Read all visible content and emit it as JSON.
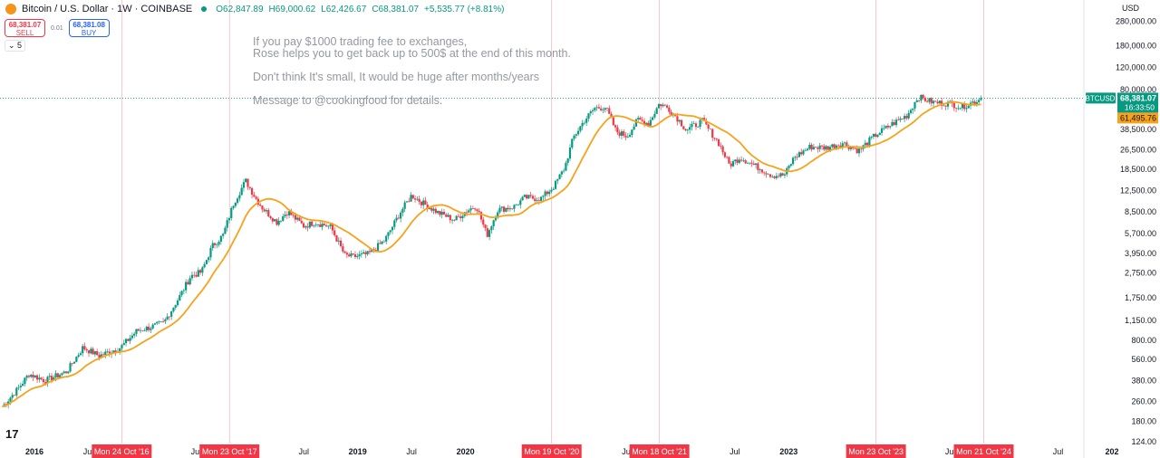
{
  "header": {
    "symbol": "Bitcoin / U.S. Dollar · 1W · COINBASE",
    "open": "O62,847.89",
    "high": "H69,000.62",
    "low": "L62,426.67",
    "close": "C68,381.07",
    "change": "+5,535.77 (+8.81%)"
  },
  "trade": {
    "sell_price": "68,381.07",
    "sell_label": "SELL",
    "spread": "0.01",
    "buy_price": "68,381.08",
    "buy_label": "BUY",
    "lots": "5"
  },
  "watermark": [
    "If you pay $1000 trading fee to exchanges,",
    "Rose helps you to get back up to 500$ at the end of this month.",
    "Don't think It's small, It would be huge after months/years",
    "Message to @cookingfood for details."
  ],
  "currency": "USD",
  "logo": "TV",
  "colors": {
    "up": "#089981",
    "down": "#f23645",
    "ma": "#f7a21b",
    "marker": "#f23645"
  },
  "chart_data": {
    "type": "candlestick",
    "title": "Bitcoin / U.S. Dollar · 1W · COINBASE",
    "yscale": "log",
    "ylim": [
      124,
      280000
    ],
    "y_ticks": [
      "280,000.00",
      "180,000.00",
      "120,000.00",
      "80,000.00",
      "38,500.00",
      "26,500.00",
      "18,500.00",
      "12,500.00",
      "8,500.00",
      "5,700.00",
      "3,950.00",
      "2,750.00",
      "1,750.00",
      "1,150.00",
      "800.00",
      "560.00",
      "380.00",
      "260.00",
      "180.00",
      "124.00"
    ],
    "y_tick_values": [
      280000,
      180000,
      120000,
      80000,
      38500,
      26500,
      18500,
      12500,
      8500,
      5700,
      3950,
      2750,
      1750,
      1150,
      800,
      560,
      380,
      260,
      180,
      124
    ],
    "x_ticks": [
      {
        "label": "2016",
        "t": 2016.0,
        "bold": true
      },
      {
        "label": "Jul",
        "t": 2016.5
      },
      {
        "label": "Jul",
        "t": 2017.5
      },
      {
        "label": "Jul",
        "t": 2018.5
      },
      {
        "label": "2019",
        "t": 2019.0,
        "bold": true
      },
      {
        "label": "Jul",
        "t": 2019.5
      },
      {
        "label": "2020",
        "t": 2020.0,
        "bold": true
      },
      {
        "label": "Jul",
        "t": 2021.5
      },
      {
        "label": "Jul",
        "t": 2022.5
      },
      {
        "label": "2023",
        "t": 2023.0,
        "bold": true
      },
      {
        "label": "Jul",
        "t": 2024.5
      },
      {
        "label": "Jul",
        "t": 2025.5
      },
      {
        "label": "202",
        "t": 2026.0,
        "bold": true
      }
    ],
    "markers": [
      {
        "label": "Mon 24 Oct '16",
        "t": 2016.81
      },
      {
        "label": "Mon 23 Oct '17",
        "t": 2017.81
      },
      {
        "label": "Mon 19 Oct '20",
        "t": 2020.8
      },
      {
        "label": "Mon 18 Oct '21",
        "t": 2021.8
      },
      {
        "label": "Mon 23 Oct '23",
        "t": 2023.81
      },
      {
        "label": "Mon 21 Oct '24",
        "t": 2024.81
      }
    ],
    "price_path": [
      [
        2015.7,
        235
      ],
      [
        2015.85,
        330
      ],
      [
        2015.95,
        430
      ],
      [
        2016.1,
        380
      ],
      [
        2016.3,
        450
      ],
      [
        2016.45,
        700
      ],
      [
        2016.6,
        600
      ],
      [
        2016.8,
        700
      ],
      [
        2016.95,
        950
      ],
      [
        2017.05,
        1000
      ],
      [
        2017.2,
        1100
      ],
      [
        2017.35,
        1800
      ],
      [
        2017.45,
        2600
      ],
      [
        2017.55,
        2800
      ],
      [
        2017.65,
        4500
      ],
      [
        2017.75,
        5500
      ],
      [
        2017.85,
        10000
      ],
      [
        2017.96,
        15000
      ],
      [
        2018.05,
        11000
      ],
      [
        2018.12,
        9000
      ],
      [
        2018.25,
        7000
      ],
      [
        2018.35,
        8500
      ],
      [
        2018.5,
        6500
      ],
      [
        2018.6,
        7000
      ],
      [
        2018.75,
        6400
      ],
      [
        2018.88,
        3800
      ],
      [
        2018.96,
        3700
      ],
      [
        2019.1,
        3900
      ],
      [
        2019.25,
        5000
      ],
      [
        2019.4,
        8500
      ],
      [
        2019.5,
        11500
      ],
      [
        2019.6,
        10000
      ],
      [
        2019.75,
        8300
      ],
      [
        2019.9,
        7300
      ],
      [
        2020.0,
        8500
      ],
      [
        2020.1,
        9500
      ],
      [
        2020.2,
        5500
      ],
      [
        2020.3,
        8800
      ],
      [
        2020.45,
        9300
      ],
      [
        2020.55,
        11000
      ],
      [
        2020.7,
        10800
      ],
      [
        2020.82,
        13500
      ],
      [
        2020.92,
        19000
      ],
      [
        2021.0,
        33000
      ],
      [
        2021.1,
        45000
      ],
      [
        2021.2,
        57000
      ],
      [
        2021.3,
        58000
      ],
      [
        2021.4,
        37000
      ],
      [
        2021.5,
        34000
      ],
      [
        2021.6,
        46000
      ],
      [
        2021.7,
        43000
      ],
      [
        2021.8,
        62000
      ],
      [
        2021.88,
        57000
      ],
      [
        2021.97,
        47000
      ],
      [
        2022.05,
        38000
      ],
      [
        2022.2,
        45000
      ],
      [
        2022.35,
        30000
      ],
      [
        2022.45,
        20000
      ],
      [
        2022.55,
        23000
      ],
      [
        2022.7,
        19500
      ],
      [
        2022.85,
        16500
      ],
      [
        2022.96,
        16600
      ],
      [
        2023.05,
        23000
      ],
      [
        2023.2,
        28000
      ],
      [
        2023.35,
        27500
      ],
      [
        2023.5,
        30000
      ],
      [
        2023.65,
        26000
      ],
      [
        2023.8,
        34500
      ],
      [
        2023.95,
        42000
      ],
      [
        2024.1,
        50000
      ],
      [
        2024.2,
        70000
      ],
      [
        2024.35,
        63000
      ],
      [
        2024.5,
        62000
      ],
      [
        2024.6,
        58000
      ],
      [
        2024.7,
        63000
      ],
      [
        2024.8,
        68381
      ]
    ],
    "ma_period_weeks": 20,
    "last_price": {
      "symbol": "BTCUSD",
      "value": "68,381.07",
      "countdown": "16:33:50",
      "v": 68381.07
    },
    "ma_value": {
      "value": "61,495.76",
      "v": 61495.76
    }
  }
}
